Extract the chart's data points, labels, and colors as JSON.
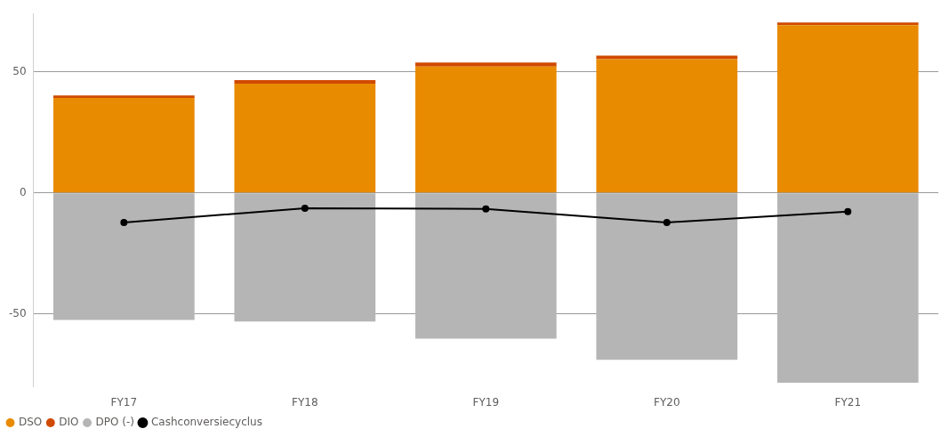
{
  "chart_data": {
    "type": "bar",
    "stacked": true,
    "categories": [
      "FY17",
      "FY18",
      "FY19",
      "FY20",
      "FY21"
    ],
    "series": [
      {
        "name": "DSO",
        "color": "#e88b00",
        "values": [
          39.2,
          45.1,
          52.1,
          55.2,
          69.2
        ]
      },
      {
        "name": "DIO",
        "color": "#d04a02",
        "values": [
          1.0,
          1.4,
          1.7,
          1.4,
          1.1
        ]
      },
      {
        "name": "DPO (-)",
        "color": "#b5b5b5",
        "values": [
          -52.4,
          -53.1,
          -60.1,
          -68.9,
          -78.3
        ]
      },
      {
        "name": "Cashconversiecyclus",
        "type": "line",
        "color": "#000000",
        "values": [
          -12.2,
          -6.3,
          -6.6,
          -12.2,
          -7.7
        ]
      }
    ],
    "ylim": [
      -80,
      74
    ],
    "yticks": [
      -50,
      0,
      50
    ],
    "grid": "y",
    "legend": "bottom left",
    "marker": "circle",
    "line_style": "solid"
  }
}
